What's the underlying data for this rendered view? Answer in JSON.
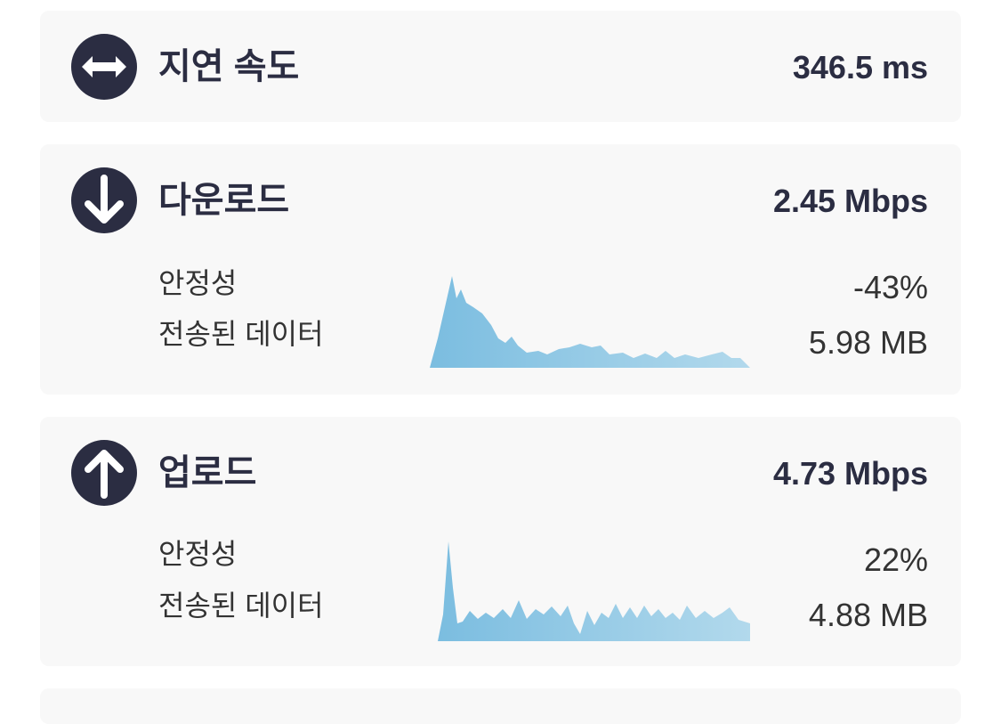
{
  "latency": {
    "label": "지연 속도",
    "value": "346.5 ms"
  },
  "download": {
    "label": "다운로드",
    "speed": "2.45 Mbps",
    "stability_label": "안정성",
    "stability": "-43%",
    "data_label": "전송된 데이터",
    "data": "5.98 MB"
  },
  "upload": {
    "label": "업로드",
    "speed": "4.73 Mbps",
    "stability_label": "안정성",
    "stability": "22%",
    "data_label": "전송된 데이터",
    "data": "4.88 MB"
  }
}
